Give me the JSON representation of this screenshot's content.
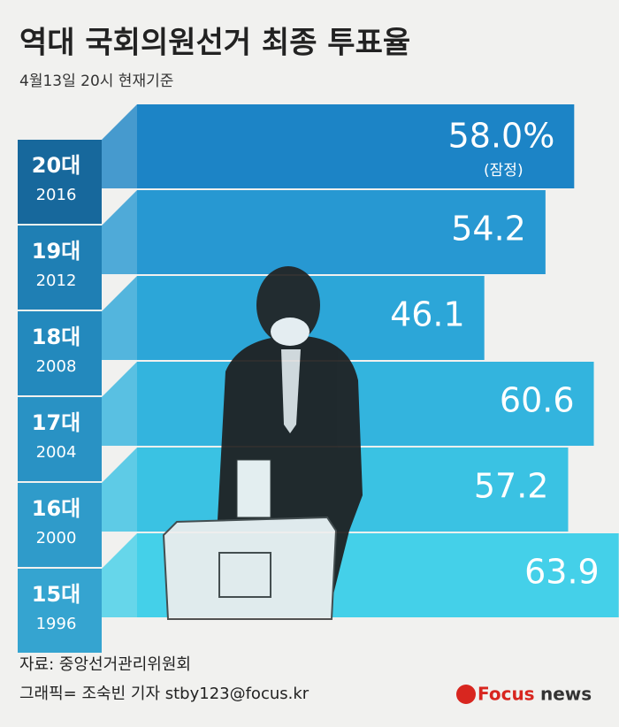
{
  "chart_data": {
    "type": "bar",
    "title": "역대 국회의원선거 최종 투표율",
    "subtitle": "4월13일 20시 현재기준",
    "categories": [
      "20대",
      "19대",
      "18대",
      "17대",
      "16대",
      "15대"
    ],
    "years": [
      "2016",
      "2012",
      "2008",
      "2004",
      "2000",
      "1996"
    ],
    "values": [
      58.0,
      54.2,
      46.1,
      60.6,
      57.2,
      63.9
    ],
    "value_labels": [
      "58.0%",
      "54.2",
      "46.1",
      "60.6",
      "57.2",
      "63.9"
    ],
    "annotation": "(잠정)",
    "colors": [
      "#1c84c6",
      "#2798d2",
      "#2ca6d8",
      "#33b4de",
      "#3ac2e3",
      "#44d0e9"
    ],
    "label_colors": [
      "#17689c",
      "#1f7fb4",
      "#2389bd",
      "#2992c4",
      "#2f9bca",
      "#35a4d0"
    ],
    "source": "자료: 중앙선거관리위원회",
    "credit": "그래픽= 조숙빈 기자 stby123@focus.kr",
    "logo": [
      "Focus",
      "news"
    ]
  }
}
